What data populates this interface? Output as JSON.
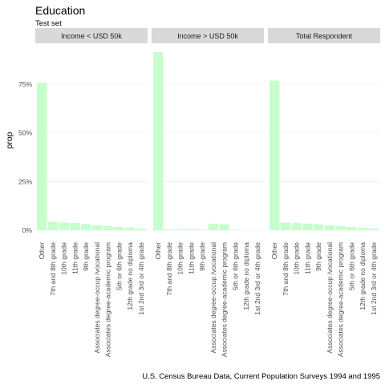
{
  "chart_data": {
    "type": "bar",
    "title": "Education",
    "subtitle": "Test set",
    "ylabel": "prop",
    "caption": "U.S. Census Bureau Data, Current Population Surveys 1994 and 1995",
    "ylim": [
      0,
      0.95
    ],
    "yticks": [
      0,
      0.25,
      0.5,
      0.75
    ],
    "ytick_labels": [
      "0%",
      "25%",
      "50%",
      "75%"
    ],
    "bar_color": "#c6ffcc",
    "strip_color": "#d9d9d9",
    "grid_color": "#ebebeb",
    "legend": "none",
    "facets": [
      {
        "label": "Income < USD 50k",
        "categories": [
          "Other",
          "7th and 8th grade",
          "10th grade",
          "11th grade",
          "9th grade",
          "Associates degree-occup /vocational",
          "Associates degree-academic program",
          "5th or 6th grade",
          "12th grade no diploma",
          "1st 2nd 3rd or 4th grade"
        ],
        "values": [
          0.757,
          0.044,
          0.04,
          0.037,
          0.032,
          0.025,
          0.021,
          0.017,
          0.014,
          0.008
        ]
      },
      {
        "label": "Income > USD 50k",
        "categories": [
          "Other",
          "7th and 8th grade",
          "10th grade",
          "11th grade",
          "9th grade",
          "Associates degree-occup /vocational",
          "Associates degree-academic program",
          "5th or 6th grade",
          "12th grade no diploma",
          "1st 2nd 3rd or 4th grade"
        ],
        "values": [
          0.915,
          0.004,
          0.004,
          0.006,
          0.003,
          0.033,
          0.03,
          0.002,
          0.0,
          0.0
        ]
      },
      {
        "label": "Total Respondent",
        "categories": [
          "Other",
          "7th and 8th grade",
          "10th grade",
          "11th grade",
          "9th grade",
          "Associates degree-occup /vocational",
          "Associates degree-academic program",
          "5th or 6th grade",
          "12th grade no diploma",
          "1st 2nd 3rd or 4th grade"
        ],
        "values": [
          0.768,
          0.04,
          0.037,
          0.034,
          0.03,
          0.025,
          0.022,
          0.017,
          0.013,
          0.008
        ]
      }
    ]
  }
}
